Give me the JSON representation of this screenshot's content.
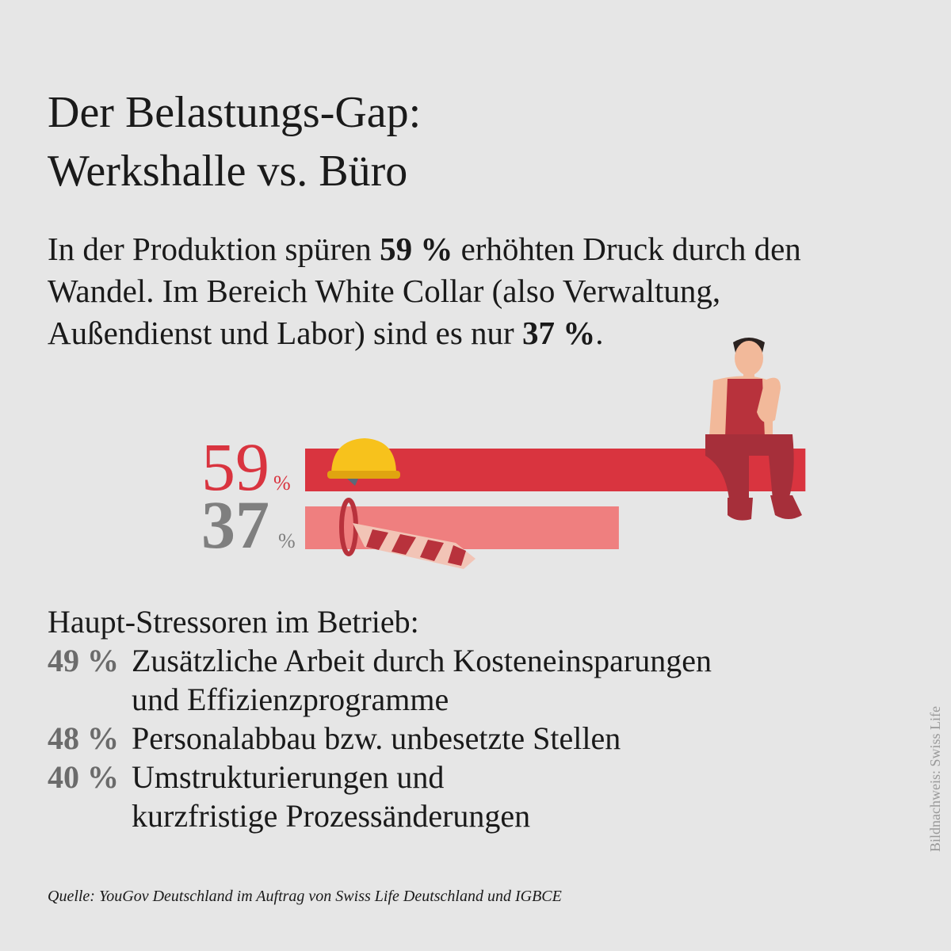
{
  "chart_data": {
    "type": "bar",
    "title_lines": [
      "Der Belastungs-Gap:",
      "Werkshalle vs. Büro"
    ],
    "intro": [
      {
        "text": "In der Produktion spüren "
      },
      {
        "text": "59 %",
        "bold": true
      },
      {
        "text": " erhöhten Druck durch den Wandel. Im Bereich White Collar (also Verwaltung, Außendienst und Labor) sind es nur "
      },
      {
        "text": "37 %",
        "bold": true
      },
      {
        "text": "."
      }
    ],
    "values": [
      59,
      37
    ],
    "unit": "%",
    "colors": [
      "#d9343f",
      "#ef7f7f"
    ],
    "label_colors": [
      "#d9343f",
      "#7f7f7f"
    ],
    "stressors_title": "Haupt-Stressoren im Betrieb:",
    "stressors": [
      {
        "percent": "49 %",
        "lines": [
          "Zusätzliche Arbeit durch Kosteneinsparungen",
          "und Effizienzprogramme"
        ]
      },
      {
        "percent": "48 %",
        "lines": [
          "Personalabbau bzw. unbesetzte Stellen"
        ]
      },
      {
        "percent": "40 %",
        "lines": [
          "Umstrukturierungen und",
          "kurzfristige Prozessänderungen"
        ]
      }
    ],
    "source": "Quelle: YouGov Deutschland im Auftrag von Swiss Life Deutschland und IGBCE",
    "credit": "Bildnachweis: Swiss Life"
  }
}
